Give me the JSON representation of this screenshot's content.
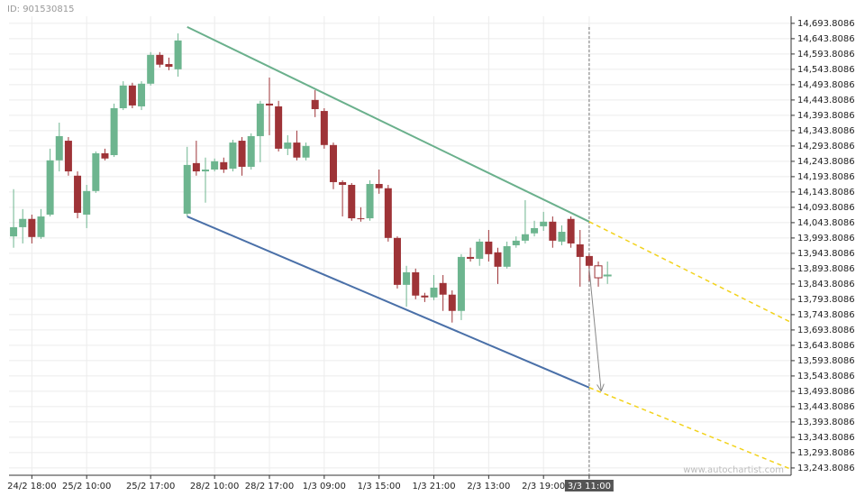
{
  "header": {
    "id": "ID: 901530815",
    "watermark": "www.autochartist.com"
  },
  "chart_data": {
    "type": "candlestick",
    "categories": [
      null,
      null,
      "24/2 18:00",
      null,
      null,
      null,
      null,
      null,
      "25/2 10:00",
      null,
      null,
      null,
      null,
      null,
      null,
      "25/2 17:00",
      null,
      null,
      null,
      null,
      null,
      null,
      "28/2 10:00",
      null,
      null,
      null,
      null,
      null,
      "28/2 17:00",
      null,
      null,
      null,
      null,
      null,
      "1/3 09:00",
      null,
      null,
      null,
      null,
      null,
      "1/3 15:00",
      null,
      null,
      null,
      null,
      null,
      "1/3 21:00",
      null,
      null,
      null,
      null,
      null,
      "2/3 13:00",
      null,
      null,
      null,
      null,
      null,
      "2/3 19:00",
      null,
      null,
      null,
      null,
      "3/3 11:00",
      null,
      null
    ],
    "open": [
      13999,
      14029,
      14056,
      13997,
      14070,
      14247,
      14311,
      14197,
      14070,
      14147,
      14270,
      14264,
      14417,
      14491,
      14423,
      14497,
      14591,
      14561,
      14544,
      14073,
      14238,
      14211,
      14217,
      14241,
      14220,
      14311,
      14226,
      14326,
      14432,
      14423,
      14285,
      14305,
      14256,
      14444,
      14408,
      14297,
      14176,
      14167,
      14058,
      14058,
      14170,
      14156,
      13994,
      13841,
      13882,
      13806,
      13800,
      13847,
      13809,
      13756,
      13932,
      13926,
      13982,
      13947,
      13900,
      13970,
      13985,
      14009,
      14032,
      14047,
      13982,
      14056,
      13973,
      13935,
      13903,
      13870
    ],
    "high": [
      14153,
      14088,
      14070,
      14088,
      14285,
      14370,
      14323,
      14211,
      14167,
      14276,
      14285,
      14432,
      14505,
      14500,
      14505,
      14600,
      14600,
      14582,
      14661,
      14291,
      14311,
      14256,
      14253,
      14256,
      14314,
      14323,
      14335,
      14441,
      14517,
      14441,
      14329,
      14344,
      14305,
      14476,
      14417,
      14305,
      14182,
      14173,
      14094,
      14182,
      14217,
      14167,
      13999,
      13903,
      13894,
      13815,
      13873,
      13873,
      13823,
      13941,
      13962,
      13991,
      14020,
      13962,
      13982,
      13999,
      14117,
      14050,
      14079,
      14064,
      14035,
      14064,
      14020,
      13941,
      13917,
      13917
    ],
    "low": [
      13962,
      13976,
      13976,
      13991,
      14064,
      14211,
      14197,
      14058,
      14026,
      14141,
      14247,
      14258,
      14411,
      14417,
      14411,
      14491,
      14550,
      14541,
      14520,
      14064,
      14197,
      14109,
      14211,
      14206,
      14211,
      14197,
      14217,
      14241,
      14329,
      14276,
      14264,
      14247,
      14247,
      14388,
      14285,
      14153,
      14064,
      14050,
      14047,
      14050,
      14138,
      13982,
      13829,
      13770,
      13794,
      13785,
      13791,
      13756,
      13718,
      13726,
      13917,
      13903,
      13917,
      13844,
      13894,
      13962,
      13976,
      13999,
      14017,
      13962,
      13970,
      13962,
      13835,
      13853,
      13835,
      13844
    ],
    "close": [
      14029,
      14056,
      13997,
      14064,
      14247,
      14326,
      14211,
      14076,
      14147,
      14270,
      14253,
      14417,
      14491,
      14426,
      14497,
      14591,
      14559,
      14552,
      14638,
      14232,
      14211,
      14217,
      14244,
      14217,
      14305,
      14226,
      14326,
      14432,
      14426,
      14285,
      14305,
      14256,
      14294,
      14414,
      14297,
      14176,
      14167,
      14058,
      14056,
      14170,
      14156,
      13994,
      13841,
      13882,
      13806,
      13800,
      13832,
      13809,
      13756,
      13932,
      13926,
      13982,
      13941,
      13900,
      13967,
      13985,
      14006,
      14026,
      14047,
      13985,
      14014,
      13976,
      13932,
      13903,
      13864,
      13873
    ],
    "up_color": "#6db58f",
    "down_color": "#9e3337",
    "hollow_from": 64,
    "highlight_index": 63,
    "lines": [
      {
        "color": "#6ab08c",
        "dashed": false,
        "x": [
          19,
          63
        ],
        "values": [
          14682,
          14047
        ]
      },
      {
        "color": "#4a70a8",
        "dashed": false,
        "x": [
          19,
          63
        ],
        "values": [
          14064,
          13506
        ]
      },
      {
        "color": "#f2d21b",
        "dashed": true,
        "x": [
          63,
          85
        ],
        "values": [
          14047,
          13720
        ]
      },
      {
        "color": "#f2d21b",
        "dashed": true,
        "x": [
          63,
          85
        ],
        "values": [
          13506,
          13241
        ]
      }
    ],
    "arrow": {
      "color": "#888888",
      "x": [
        63,
        64.3
      ],
      "values": [
        13894,
        13497
      ]
    },
    "xlim": [
      -0.5,
      85.1
    ],
    "ylim": [
      13220,
      14717
    ],
    "grid": true,
    "yticks": [
      {
        "value": 13243.8086,
        "label": "13,243.8086"
      },
      {
        "value": 13293.8086,
        "label": "13,293.8086"
      },
      {
        "value": 13343.8086,
        "label": "13,343.8086"
      },
      {
        "value": 13393.8086,
        "label": "13,393.8086"
      },
      {
        "value": 13443.8086,
        "label": "13,443.8086"
      },
      {
        "value": 13493.8086,
        "label": "13,493.8086"
      },
      {
        "value": 13543.8086,
        "label": "13,543.8086"
      },
      {
        "value": 13593.8086,
        "label": "13,593.8086"
      },
      {
        "value": 13643.8086,
        "label": "13,643.8086"
      },
      {
        "value": 13693.8086,
        "label": "13,693.8086"
      },
      {
        "value": 13743.8086,
        "label": "13,743.8086"
      },
      {
        "value": 13793.8086,
        "label": "13,793.8086"
      },
      {
        "value": 13843.8086,
        "label": "13,843.8086"
      },
      {
        "value": 13893.8086,
        "label": "13,893.8086"
      },
      {
        "value": 13943.8086,
        "label": "13,943.8086"
      },
      {
        "value": 13993.8086,
        "label": "13,993.8086"
      },
      {
        "value": 14043.8086,
        "label": "14,043.8086"
      },
      {
        "value": 14093.8086,
        "label": "14,093.8086"
      },
      {
        "value": 14143.8086,
        "label": "14,143.8086"
      },
      {
        "value": 14193.8086,
        "label": "14,193.8086"
      },
      {
        "value": 14243.8086,
        "label": "14,243.8086"
      },
      {
        "value": 14293.8086,
        "label": "14,293.8086"
      },
      {
        "value": 14343.8086,
        "label": "14,343.8086"
      },
      {
        "value": 14393.8086,
        "label": "14,393.8086"
      },
      {
        "value": 14443.8086,
        "label": "14,443.8086"
      },
      {
        "value": 14493.8086,
        "label": "14,493.8086"
      },
      {
        "value": 14543.8086,
        "label": "14,543.8086"
      },
      {
        "value": 14593.8086,
        "label": "14,593.8086"
      },
      {
        "value": 14643.8086,
        "label": "14,643.8086"
      },
      {
        "value": 14693.8086,
        "label": "14,693.8086"
      }
    ]
  }
}
